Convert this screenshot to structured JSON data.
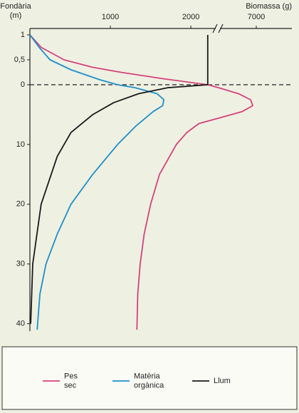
{
  "chart_data": {
    "type": "line",
    "ylabel": [
      "Fondària",
      "(m)"
    ],
    "xlabel": "Biomassa (g)",
    "xlim": [
      0,
      7500
    ],
    "xbreak": [
      2300,
      6500
    ],
    "xticks": [
      1000,
      2000,
      7000
    ],
    "ylim": [
      -1,
      41
    ],
    "y_split": 0,
    "yticks": [
      {
        "value": -1,
        "label": "1"
      },
      {
        "value": -0.5,
        "label": "0,5"
      },
      0,
      10,
      20,
      30,
      40
    ],
    "surface_line": true,
    "series": [
      {
        "name": "Pes sec",
        "color": "#d4427c",
        "x": [
          0,
          140,
          425,
          780,
          1130,
          1660,
          2210,
          6500,
          6750,
          6920,
          6950,
          6800,
          6500,
          2100,
          1950,
          1820,
          1610,
          1500,
          1420,
          1370,
          1340,
          1330
        ],
        "y": [
          -1,
          -0.75,
          -0.5,
          -0.35,
          -0.25,
          -0.12,
          0,
          0.6,
          1.5,
          2.5,
          3.5,
          4.5,
          5.5,
          6.5,
          8,
          10,
          15,
          20,
          25,
          30,
          35,
          41
        ]
      },
      {
        "name": "Matèria orgànica",
        "color": "#1e8fc8",
        "x": [
          0,
          115,
          250,
          510,
          870,
          1090,
          1310,
          1580,
          1665,
          1650,
          1530,
          1310,
          1090,
          780,
          510,
          340,
          200,
          125,
          90
        ],
        "y": [
          -1,
          -0.75,
          -0.5,
          -0.3,
          -0.1,
          0,
          0.5,
          1.5,
          2.5,
          3.5,
          4.5,
          7,
          10,
          15,
          20,
          25,
          30,
          35,
          41
        ]
      },
      {
        "name": "Llum",
        "color": "#1a1a1a",
        "x": [
          2210,
          2210,
          1710,
          1350,
          1040,
          780,
          510,
          340,
          140,
          35,
          10
        ],
        "y": [
          -1,
          0,
          0.5,
          1.5,
          3,
          5,
          8,
          12,
          20,
          30,
          40
        ]
      }
    ]
  }
}
